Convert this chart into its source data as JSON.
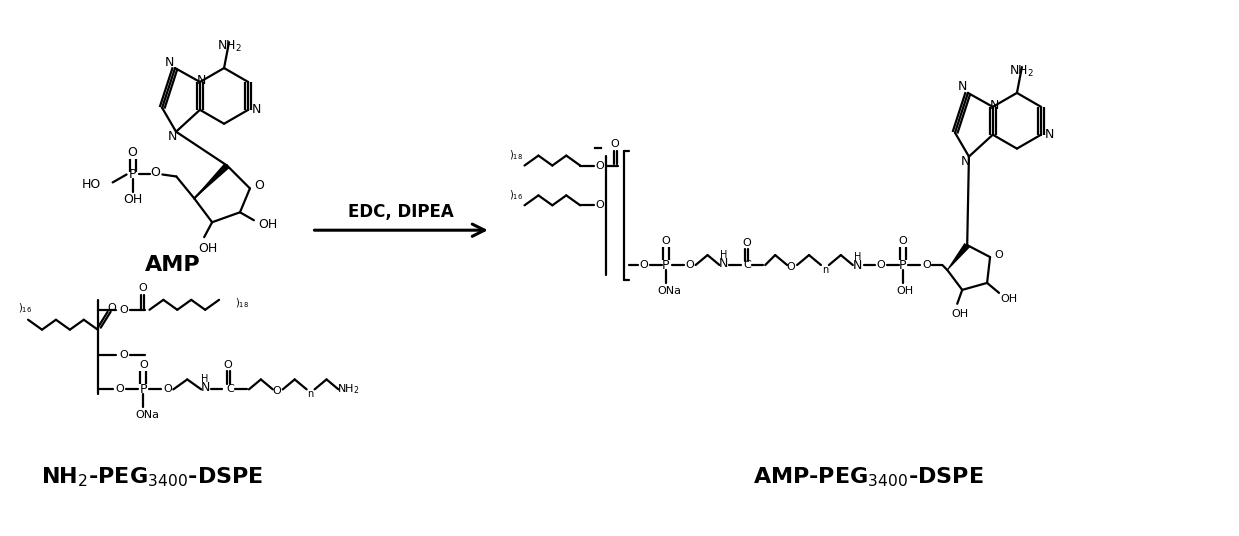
{
  "background_color": "#ffffff",
  "fig_width": 12.39,
  "fig_height": 5.36,
  "dpi": 100,
  "label_AMP": "AMP",
  "label_reactants": "NH$_2$-PEG$_{3400}$-DSPE",
  "label_product": "AMP-PEG$_{3400}$-DSPE",
  "arrow_label_top": "EDC, DIPEA",
  "text_color": "#000000",
  "font_size_labels": 16,
  "font_size_arrow": 12,
  "lw": 1.6,
  "lw_bold": 3.5
}
